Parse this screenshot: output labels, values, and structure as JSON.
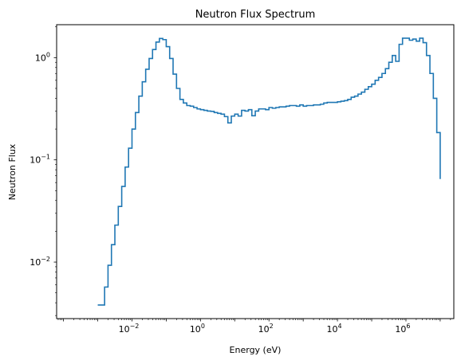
{
  "chart_data": {
    "type": "line",
    "drawstyle": "steps",
    "title": "Neutron Flux Spectrum",
    "xlabel": "Energy (eV)",
    "ylabel": "Neutron Flux",
    "xscale": "log",
    "yscale": "log",
    "xlim": [
      6.3e-05,
      25000000
    ],
    "ylim": [
      0.0028,
      2.1
    ],
    "grid": false,
    "color": "#1f77b4",
    "x_ticks": [
      {
        "value": 0.01,
        "base": "10",
        "exp": "−2"
      },
      {
        "value": 1,
        "base": "10",
        "exp": "0"
      },
      {
        "value": 100,
        "base": "10",
        "exp": "2"
      },
      {
        "value": 10000,
        "base": "10",
        "exp": "4"
      },
      {
        "value": 1000000,
        "base": "10",
        "exp": "6"
      }
    ],
    "y_ticks": [
      {
        "value": 0.01,
        "base": "10",
        "exp": "−2"
      },
      {
        "value": 0.1,
        "base": "10",
        "exp": "−1"
      },
      {
        "value": 1,
        "base": "10",
        "exp": "0"
      }
    ],
    "series": [
      {
        "log10_x_start": -3.0,
        "log10_x_step": 0.1,
        "values": [
          0.0038,
          0.0038,
          0.0057,
          0.0093,
          0.0148,
          0.023,
          0.035,
          0.055,
          0.085,
          0.13,
          0.2,
          0.29,
          0.42,
          0.58,
          0.77,
          0.98,
          1.2,
          1.42,
          1.54,
          1.5,
          1.28,
          0.98,
          0.69,
          0.5,
          0.39,
          0.36,
          0.34,
          0.335,
          0.325,
          0.315,
          0.31,
          0.305,
          0.3,
          0.298,
          0.29,
          0.285,
          0.28,
          0.265,
          0.23,
          0.268,
          0.28,
          0.268,
          0.305,
          0.3,
          0.31,
          0.27,
          0.3,
          0.315,
          0.315,
          0.31,
          0.325,
          0.32,
          0.325,
          0.33,
          0.33,
          0.335,
          0.34,
          0.34,
          0.335,
          0.345,
          0.335,
          0.34,
          0.34,
          0.345,
          0.345,
          0.35,
          0.36,
          0.365,
          0.365,
          0.365,
          0.37,
          0.375,
          0.38,
          0.39,
          0.41,
          0.42,
          0.44,
          0.46,
          0.49,
          0.52,
          0.55,
          0.6,
          0.64,
          0.7,
          0.78,
          0.9,
          1.05,
          0.92,
          1.35,
          1.55,
          1.55,
          1.48,
          1.52,
          1.45,
          1.55,
          1.4,
          1.05,
          0.7,
          0.4,
          0.185,
          0.065
        ]
      }
    ]
  }
}
